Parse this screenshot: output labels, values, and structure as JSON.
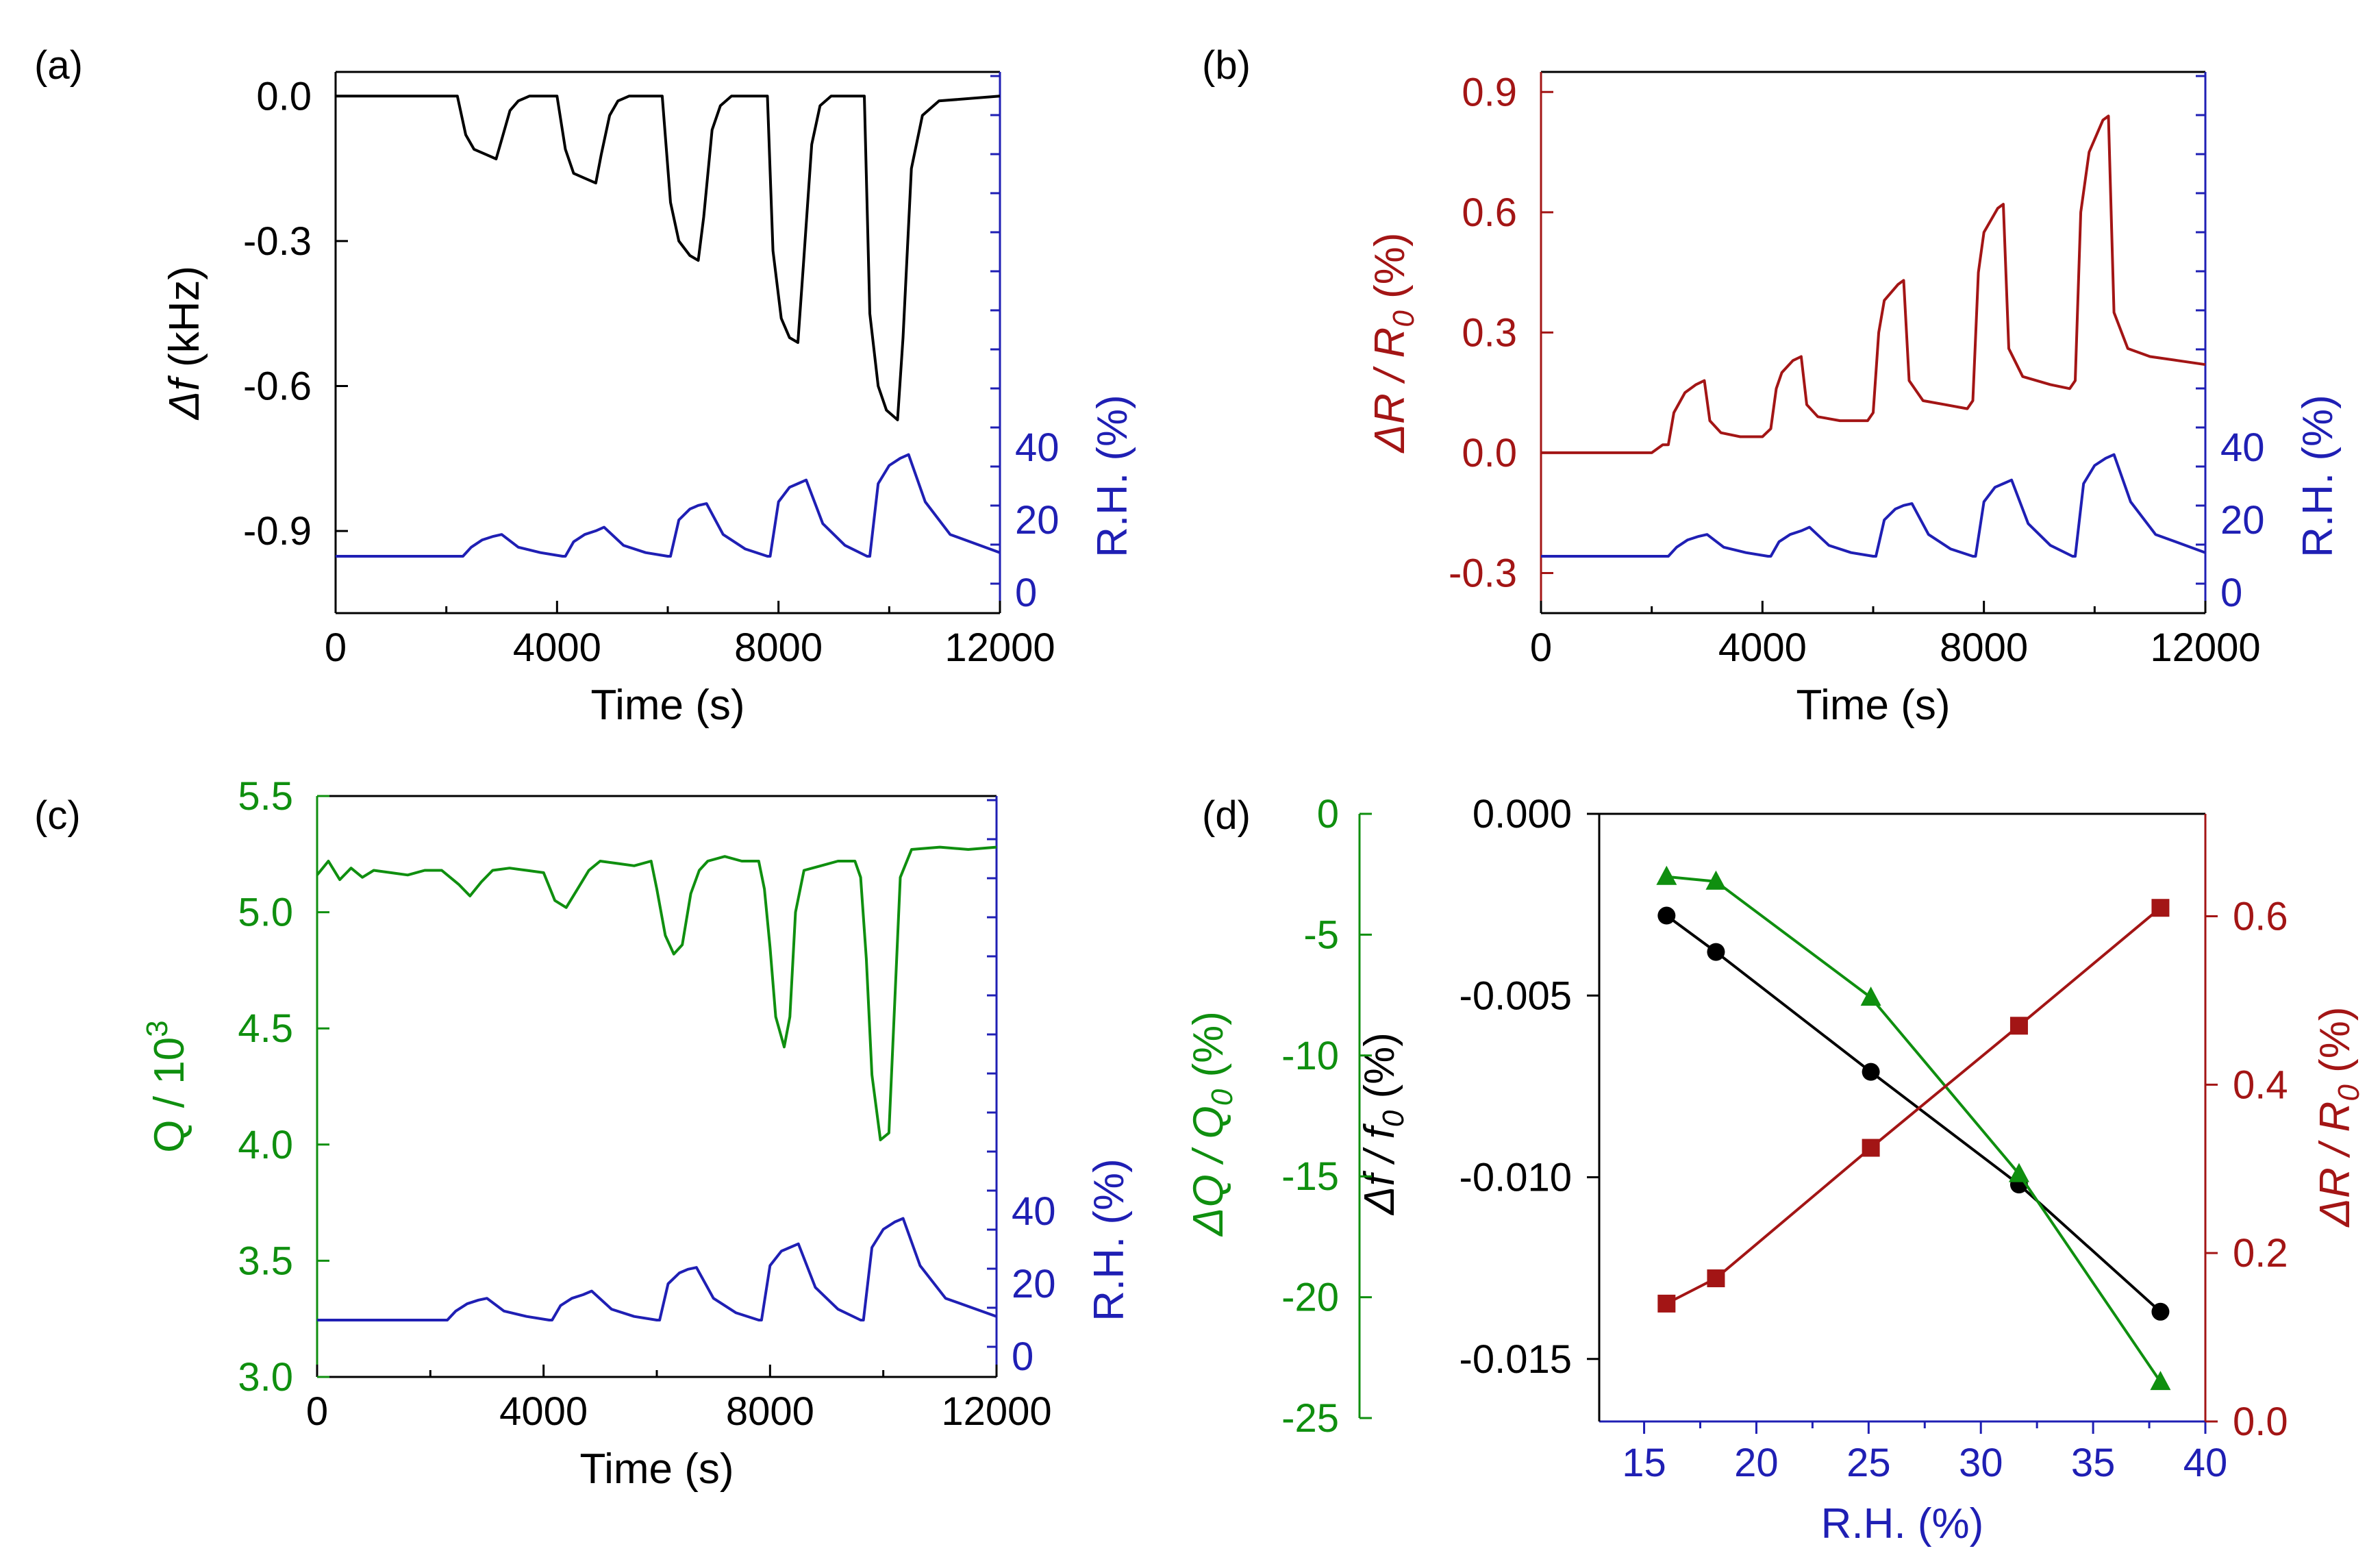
{
  "figure": {
    "colors": {
      "black": "#000000",
      "blue": "#1f1fb4",
      "red": "#a31515",
      "green": "#0f8f0f"
    }
  },
  "chart_data": [
    {
      "panel_label": "(a)",
      "type": "line",
      "xlabel": "Time (s)",
      "xlim": [
        0,
        12000
      ],
      "xticks": [
        "0",
        "4000",
        "8000",
        "12000"
      ],
      "ylabel_italic": "Δf",
      "ylabel_rest": " (kHz)",
      "ylim": [
        -1.07,
        0.05
      ],
      "yticks": [
        "0.0",
        "-0.3",
        "-0.6",
        "-0.9"
      ],
      "y2label": "R.H. (%)",
      "y2ticks": [
        "0",
        "20",
        "40"
      ],
      "series": [
        {
          "axis": "y",
          "color": "#000000",
          "x": [
            0,
            2200,
            2350,
            2500,
            2700,
            2900,
            3000,
            3150,
            3300,
            3500,
            4000,
            4150,
            4300,
            4500,
            4700,
            4800,
            4950,
            5100,
            5300,
            5900,
            6050,
            6200,
            6400,
            6550,
            6650,
            6800,
            6950,
            7150,
            7800,
            7900,
            8050,
            8200,
            8350,
            8450,
            8600,
            8750,
            8950,
            9550,
            9650,
            9800,
            9950,
            10150,
            10250,
            10400,
            10600,
            10900,
            12000
          ],
          "y": [
            0.0,
            0.0,
            -0.08,
            -0.11,
            -0.12,
            -0.13,
            -0.09,
            -0.03,
            -0.01,
            0.0,
            0.0,
            -0.11,
            -0.16,
            -0.17,
            -0.18,
            -0.12,
            -0.04,
            -0.01,
            0.0,
            0.0,
            -0.22,
            -0.3,
            -0.33,
            -0.34,
            -0.25,
            -0.07,
            -0.02,
            0.0,
            0.0,
            -0.32,
            -0.46,
            -0.5,
            -0.51,
            -0.35,
            -0.1,
            -0.02,
            0.0,
            0.0,
            -0.45,
            -0.6,
            -0.65,
            -0.67,
            -0.5,
            -0.15,
            -0.04,
            -0.01,
            0.0
          ]
        },
        {
          "axis": "y2",
          "color": "#1f1fb4",
          "x": [
            0,
            2300,
            2450,
            2650,
            2850,
            3000,
            3300,
            3700,
            4100,
            4150,
            4300,
            4500,
            4700,
            4850,
            5200,
            5600,
            6000,
            6050,
            6200,
            6400,
            6550,
            6700,
            7000,
            7400,
            7800,
            7850,
            8000,
            8200,
            8350,
            8500,
            8800,
            9200,
            9600,
            9650,
            9800,
            10000,
            10200,
            10350,
            10650,
            11100,
            12000
          ],
          "y": [
            10,
            10,
            12.5,
            14.5,
            15.5,
            16,
            12.5,
            11,
            10,
            10,
            14,
            16,
            17,
            18,
            13,
            11,
            10,
            10,
            20,
            23,
            24,
            24.5,
            16,
            12,
            10,
            10,
            25,
            29,
            30,
            31,
            19,
            13,
            10,
            10,
            30,
            35,
            37,
            38,
            25,
            16,
            11
          ]
        }
      ]
    },
    {
      "panel_label": "(b)",
      "type": "line",
      "xlabel": "Time (s)",
      "xlim": [
        0,
        12000
      ],
      "xticks": [
        "0",
        "4000",
        "8000",
        "12000"
      ],
      "ylabel_italic": "ΔR / R",
      "ylabel_sub": "0",
      "ylabel_rest": " (%)",
      "ylim": [
        -0.4,
        0.95
      ],
      "yticks": [
        "0.9",
        "0.6",
        "0.3",
        "0.0",
        "-0.3"
      ],
      "y2label": "R.H. (%)",
      "y2ticks": [
        "0",
        "20",
        "40"
      ],
      "series": [
        {
          "axis": "y",
          "color": "#a31515",
          "x": [
            0,
            2000,
            2200,
            2300,
            2400,
            2600,
            2800,
            2950,
            3050,
            3250,
            3600,
            4000,
            4150,
            4250,
            4350,
            4550,
            4700,
            4800,
            5000,
            5400,
            5900,
            6000,
            6100,
            6200,
            6450,
            6550,
            6650,
            6900,
            7300,
            7700,
            7800,
            7900,
            8000,
            8250,
            8350,
            8450,
            8700,
            9200,
            9550,
            9650,
            9750,
            9900,
            10150,
            10250,
            10350,
            10600,
            11000,
            11500,
            12000
          ],
          "y": [
            0.0,
            0.0,
            0.02,
            0.02,
            0.1,
            0.15,
            0.17,
            0.18,
            0.08,
            0.05,
            0.04,
            0.04,
            0.06,
            0.16,
            0.2,
            0.23,
            0.24,
            0.12,
            0.09,
            0.08,
            0.08,
            0.1,
            0.3,
            0.38,
            0.42,
            0.43,
            0.18,
            0.13,
            0.12,
            0.11,
            0.13,
            0.45,
            0.55,
            0.61,
            0.62,
            0.26,
            0.19,
            0.17,
            0.16,
            0.18,
            0.6,
            0.75,
            0.83,
            0.84,
            0.35,
            0.26,
            0.24,
            0.23,
            0.22
          ]
        },
        {
          "axis": "y2",
          "color": "#1f1fb4",
          "x": [
            0,
            2300,
            2450,
            2650,
            2850,
            3000,
            3300,
            3700,
            4100,
            4150,
            4300,
            4500,
            4700,
            4850,
            5200,
            5600,
            6000,
            6050,
            6200,
            6400,
            6550,
            6700,
            7000,
            7400,
            7800,
            7850,
            8000,
            8200,
            8350,
            8500,
            8800,
            9200,
            9600,
            9650,
            9800,
            10000,
            10200,
            10350,
            10650,
            11100,
            12000
          ],
          "y": [
            10,
            10,
            12.5,
            14.5,
            15.5,
            16,
            12.5,
            11,
            10,
            10,
            14,
            16,
            17,
            18,
            13,
            11,
            10,
            10,
            20,
            23,
            24,
            24.5,
            16,
            12,
            10,
            10,
            25,
            29,
            30,
            31,
            19,
            13,
            10,
            10,
            30,
            35,
            37,
            38,
            25,
            16,
            11
          ]
        }
      ]
    },
    {
      "panel_label": "(c)",
      "type": "line",
      "xlabel": "Time (s)",
      "xlim": [
        0,
        12000
      ],
      "xticks": [
        "0",
        "4000",
        "8000",
        "12000"
      ],
      "ylabel_rest": "Q / 10",
      "ylabel_sup": "3",
      "ylim": [
        3.0,
        5.5
      ],
      "yticks": [
        "5.5",
        "5.0",
        "4.5",
        "4.0",
        "3.5",
        "3.0"
      ],
      "y2label": "R.H. (%)",
      "y2ticks": [
        "0",
        "20",
        "40"
      ],
      "series": [
        {
          "axis": "y",
          "color": "#0f8f0f",
          "x": [
            0,
            200,
            400,
            600,
            800,
            1000,
            1300,
            1600,
            1900,
            2200,
            2500,
            2700,
            2900,
            3100,
            3400,
            3700,
            4000,
            4200,
            4400,
            4600,
            4800,
            5000,
            5300,
            5600,
            5900,
            6000,
            6150,
            6300,
            6450,
            6600,
            6750,
            6900,
            7200,
            7500,
            7800,
            7900,
            8000,
            8100,
            8250,
            8350,
            8450,
            8600,
            8900,
            9200,
            9500,
            9600,
            9700,
            9800,
            9950,
            10100,
            10200,
            10300,
            10500,
            11000,
            11500,
            12000
          ],
          "y": [
            5.16,
            5.22,
            5.14,
            5.19,
            5.15,
            5.18,
            5.17,
            5.16,
            5.18,
            5.18,
            5.12,
            5.07,
            5.13,
            5.18,
            5.19,
            5.18,
            5.17,
            5.05,
            5.02,
            5.1,
            5.18,
            5.22,
            5.21,
            5.2,
            5.22,
            5.1,
            4.9,
            4.82,
            4.86,
            5.08,
            5.18,
            5.22,
            5.24,
            5.22,
            5.22,
            5.1,
            4.85,
            4.55,
            4.42,
            4.55,
            5.0,
            5.18,
            5.2,
            5.22,
            5.22,
            5.15,
            4.8,
            4.3,
            4.02,
            4.05,
            4.6,
            5.15,
            5.27,
            5.28,
            5.27,
            5.28
          ]
        },
        {
          "axis": "y2",
          "color": "#1f1fb4",
          "x": [
            0,
            2300,
            2450,
            2650,
            2850,
            3000,
            3300,
            3700,
            4100,
            4150,
            4300,
            4500,
            4700,
            4850,
            5200,
            5600,
            6000,
            6050,
            6200,
            6400,
            6550,
            6700,
            7000,
            7400,
            7800,
            7850,
            8000,
            8200,
            8350,
            8500,
            8800,
            9200,
            9600,
            9650,
            9800,
            10000,
            10200,
            10350,
            10650,
            11100,
            12000
          ],
          "y": [
            10,
            10,
            12.5,
            14.5,
            15.5,
            16,
            12.5,
            11,
            10,
            10,
            14,
            16,
            17,
            18,
            13,
            11,
            10,
            10,
            20,
            23,
            24,
            24.5,
            16,
            12,
            10,
            10,
            25,
            29,
            30,
            31,
            19,
            13,
            10,
            10,
            30,
            35,
            37,
            38,
            25,
            16,
            11
          ]
        }
      ]
    },
    {
      "panel_label": "(d)",
      "type": "scatter",
      "xlabel": "R.H. (%)",
      "xlim": [
        13,
        40
      ],
      "xticks": [
        "15",
        "20",
        "25",
        "30",
        "35",
        "40"
      ],
      "ylabel_italic": "Δf / f",
      "ylabel_sub": "0",
      "ylabel_rest": " (%)",
      "ylim": [
        -0.0158,
        0.0
      ],
      "yticks": [
        "0.000",
        "-0.005",
        "-0.010",
        "-0.015"
      ],
      "y2label_italic": "ΔR / R",
      "y2label_sub": "0",
      "y2label_rest": " (%)",
      "y2lim": [
        0.0,
        0.7
      ],
      "y2ticks": [
        "0.0",
        "0.2",
        "0.4",
        "0.6"
      ],
      "y3label_italic": "ΔQ / Q",
      "y3label_sub": "0",
      "y3label_rest": " (%)",
      "y3lim": [
        -25,
        0
      ],
      "y3ticks": [
        "0",
        "-5",
        "-10",
        "-15",
        "-20",
        "-25"
      ],
      "series": [
        {
          "axis": "y",
          "color": "#000000",
          "marker": "circle",
          "x": [
            16.0,
            18.2,
            25.1,
            31.7,
            38.0
          ],
          "y": [
            -0.0028,
            -0.0038,
            -0.0071,
            -0.0102,
            -0.0137
          ]
        },
        {
          "axis": "y3",
          "color": "#0f8f0f",
          "marker": "triangle",
          "x": [
            16.0,
            18.2,
            25.1,
            31.7,
            38.0
          ],
          "y": [
            -2.6,
            -2.8,
            -7.6,
            -14.9,
            -23.5
          ]
        },
        {
          "axis": "y2",
          "color": "#a31515",
          "marker": "square",
          "x": [
            16.0,
            18.2,
            25.1,
            31.7,
            38.0
          ],
          "y": [
            0.14,
            0.17,
            0.325,
            0.47,
            0.61
          ]
        }
      ]
    }
  ]
}
